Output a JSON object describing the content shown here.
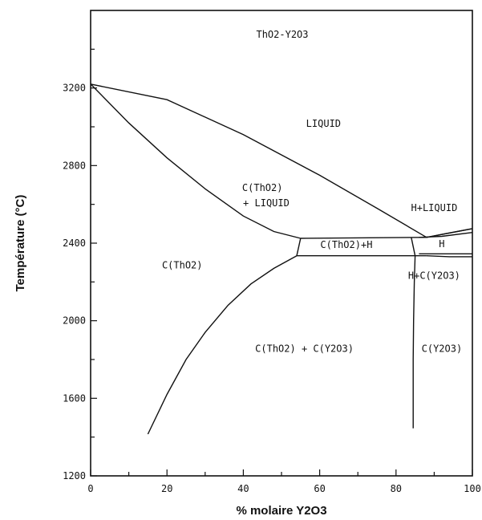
{
  "chart_data": {
    "type": "phase-diagram",
    "title": "ThO2-Y2O3",
    "xlabel": "% molaire Y2O3",
    "ylabel": "Température (°C)",
    "xlim": [
      0,
      100
    ],
    "ylim": [
      1200,
      3600
    ],
    "x_ticks": [
      0,
      20,
      40,
      60,
      80,
      100
    ],
    "x_tick_labels": [
      "0",
      "20",
      "40",
      "60",
      "80",
      "100"
    ],
    "y_ticks": [
      1200,
      1600,
      2000,
      2400,
      2800,
      3200
    ],
    "y_tick_labels": [
      "1200",
      "1600",
      "2000",
      "2400",
      "2800",
      "3200"
    ],
    "x_minor_ticks": [
      10,
      30,
      50,
      70,
      90
    ],
    "y_minor_ticks": [
      1400,
      1800,
      2200,
      2600,
      3000,
      3400
    ],
    "region_labels": [
      {
        "id": "liquid",
        "text": "LIQUID",
        "x": 61,
        "y": 3000
      },
      {
        "id": "c-tho2-liquid-1",
        "text": "C(ThO2)",
        "x": 45,
        "y": 2670
      },
      {
        "id": "c-tho2-liquid-2",
        "text": "+ LIQUID",
        "x": 46,
        "y": 2590
      },
      {
        "id": "h-liquid",
        "text": "H+LIQUID",
        "x": 90,
        "y": 2565
      },
      {
        "id": "c-tho2-h",
        "text": "C(ThO2)+H",
        "x": 67,
        "y": 2375
      },
      {
        "id": "h",
        "text": "H",
        "x": 92,
        "y": 2380
      },
      {
        "id": "c-tho2",
        "text": "C(ThO2)",
        "x": 24,
        "y": 2270
      },
      {
        "id": "h-c-y2o3",
        "text": "H+C(Y2O3)",
        "x": 90,
        "y": 2215
      },
      {
        "id": "c-tho2-c-y2o3",
        "text": "C(ThO2) + C(Y2O3)",
        "x": 56,
        "y": 1840
      },
      {
        "id": "c-y2o3",
        "text": "C(Y2O3)",
        "x": 92,
        "y": 1840
      }
    ],
    "curves": [
      {
        "name": "liquidus",
        "points": [
          [
            0,
            3220
          ],
          [
            20,
            3140
          ],
          [
            40,
            2960
          ],
          [
            60,
            2750
          ],
          [
            75,
            2580
          ],
          [
            88,
            2430
          ],
          [
            100,
            2475
          ]
        ]
      },
      {
        "name": "solidus-ThO2",
        "points": [
          [
            0,
            3220
          ],
          [
            10,
            3020
          ],
          [
            20,
            2840
          ],
          [
            30,
            2680
          ],
          [
            40,
            2540
          ],
          [
            48,
            2460
          ],
          [
            55,
            2425
          ]
        ]
      },
      {
        "name": "peritectic-line",
        "points": [
          [
            55,
            2425
          ],
          [
            88,
            2430
          ]
        ]
      },
      {
        "name": "eutectoid-line",
        "points": [
          [
            54,
            2335
          ],
          [
            88,
            2335
          ]
        ]
      },
      {
        "name": "tho2-h-left-boundary",
        "points": [
          [
            55,
            2425
          ],
          [
            54,
            2335
          ]
        ]
      },
      {
        "name": "h-left-boundary",
        "points": [
          [
            84,
            2430
          ],
          [
            85,
            2335
          ]
        ]
      },
      {
        "name": "solvus-ThO2",
        "points": [
          [
            15,
            1415
          ],
          [
            20,
            1620
          ],
          [
            25,
            1800
          ],
          [
            30,
            1940
          ],
          [
            36,
            2080
          ],
          [
            42,
            2190
          ],
          [
            48,
            2270
          ],
          [
            54,
            2335
          ]
        ]
      },
      {
        "name": "solvus-Y2O3",
        "points": [
          [
            85,
            2335
          ],
          [
            84.8,
            2200
          ],
          [
            84.6,
            2000
          ],
          [
            84.5,
            1800
          ],
          [
            84.5,
            1600
          ],
          [
            84.5,
            1445
          ]
        ]
      },
      {
        "name": "h-upper-right",
        "points": [
          [
            88,
            2430
          ],
          [
            92,
            2445
          ],
          [
            96,
            2460
          ],
          [
            100,
            2475
          ]
        ]
      },
      {
        "name": "h-upper-inner",
        "points": [
          [
            86,
            2430
          ],
          [
            92,
            2435
          ],
          [
            100,
            2455
          ]
        ]
      },
      {
        "name": "h-lower-right",
        "points": [
          [
            88,
            2335
          ],
          [
            94,
            2330
          ],
          [
            100,
            2330
          ]
        ]
      },
      {
        "name": "h-lower-inner",
        "points": [
          [
            86,
            2345
          ],
          [
            92,
            2345
          ],
          [
            100,
            2345
          ]
        ]
      }
    ],
    "grid": false
  }
}
